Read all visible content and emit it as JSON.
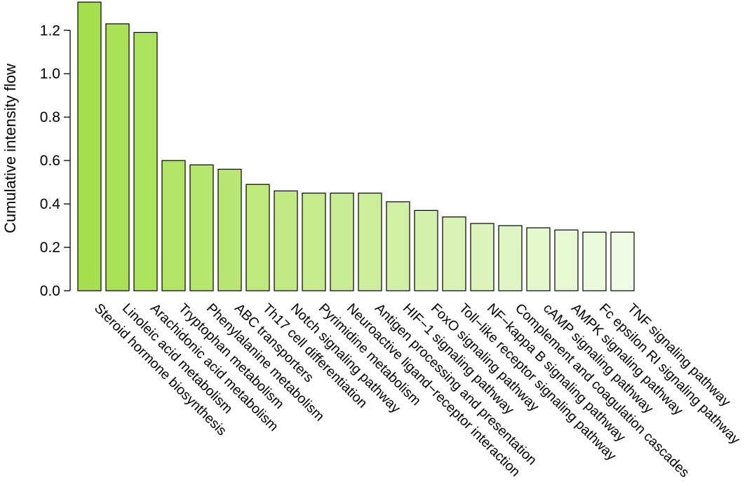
{
  "chart_data": {
    "type": "bar",
    "title": "",
    "xlabel": "",
    "ylabel": "Cumulative intensity flow",
    "ylim": [
      0,
      1.33
    ],
    "yticks": [
      "0.0",
      "0.2",
      "0.4",
      "0.6",
      "0.8",
      "1.0",
      "1.2"
    ],
    "grid": false,
    "legend": "none",
    "categories": [
      "Steroid hormone biosynthesis",
      "Linoleic acid metabolism",
      "Arachidonic acid metabolism",
      "Tryptophan metabolism",
      "Phenylalanine metabolism",
      "ABC transporters",
      "Th17 cell differentiation",
      "Notch signaling pathway",
      "Pyrimidine metabolism",
      "Neuroactive ligand−receptor interaction",
      "Antigen processing and presentation",
      "HIF−1 signaling pathway",
      "FoxO signaling pathway",
      "Toll−like receptor signaling pathway",
      "NF−kappa B signaling pathway",
      "Complement and coagulation cascades",
      "cAMP signaling pathway",
      "AMPK signaling pathway",
      "Fc epsilon RI signaling pathway",
      "TNF signaling pathway"
    ],
    "values": [
      1.33,
      1.23,
      1.19,
      0.6,
      0.58,
      0.56,
      0.49,
      0.46,
      0.45,
      0.45,
      0.45,
      0.41,
      0.37,
      0.34,
      0.31,
      0.3,
      0.29,
      0.28,
      0.27,
      0.27
    ],
    "colors": {
      "start": "#a6e04e",
      "end": "#effbe3",
      "stroke": "#000000"
    }
  }
}
